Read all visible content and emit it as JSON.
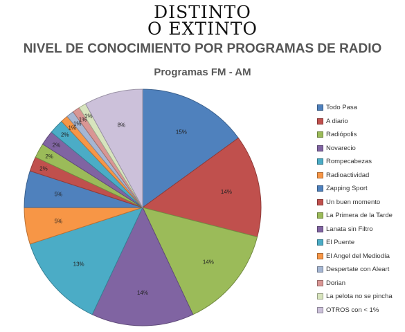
{
  "brand": {
    "line1": "DISTINTO",
    "line2": "O EXTINTO"
  },
  "heading": "NIVEL DE CONOCIMIENTO POR PROGRAMAS DE RADIO",
  "chart_data": {
    "type": "pie",
    "title": "Programas FM - AM",
    "legend_position": "right",
    "slices": [
      {
        "label": "Todo Pasa",
        "value": 15,
        "display": "15%",
        "color": "#4f81bd"
      },
      {
        "label": "A diario",
        "value": 14,
        "display": "14%",
        "color": "#c0504d"
      },
      {
        "label": "Radiópolis",
        "value": 14,
        "display": "14%",
        "color": "#9bbb59"
      },
      {
        "label": "Novarecio",
        "value": 14,
        "display": "14%",
        "color": "#8064a2"
      },
      {
        "label": "Rompecabezas",
        "value": 13,
        "display": "13%",
        "color": "#4bacc6"
      },
      {
        "label": "Radioactividad",
        "value": 5,
        "display": "5%",
        "color": "#f79646"
      },
      {
        "label": "Zapping Sport",
        "value": 5,
        "display": "5%",
        "color": "#4f81bd"
      },
      {
        "label": "Un buen momento",
        "value": 2,
        "display": "2%",
        "color": "#c0504d"
      },
      {
        "label": "La Primera de la Tarde",
        "value": 2,
        "display": "2%",
        "color": "#9bbb59"
      },
      {
        "label": "Lanata sin Filtro",
        "value": 2,
        "display": "2%",
        "color": "#8064a2"
      },
      {
        "label": "El Puente",
        "value": 2,
        "display": "2%",
        "color": "#4bacc6"
      },
      {
        "label": "El Angel del Mediodía",
        "value": 1,
        "display": "1%",
        "color": "#f79646"
      },
      {
        "label": "Despertate con Aleart",
        "value": 1,
        "display": "1%",
        "color": "#a5b6d3"
      },
      {
        "label": "Dorian",
        "value": 1,
        "display": "1%",
        "color": "#d99694"
      },
      {
        "label": "La pelota no se pincha",
        "value": 1,
        "display": "1%",
        "color": "#d7e4bd"
      },
      {
        "label": "OTROS con < 1%",
        "value": 8,
        "display": "8%",
        "color": "#ccc1da"
      }
    ]
  }
}
